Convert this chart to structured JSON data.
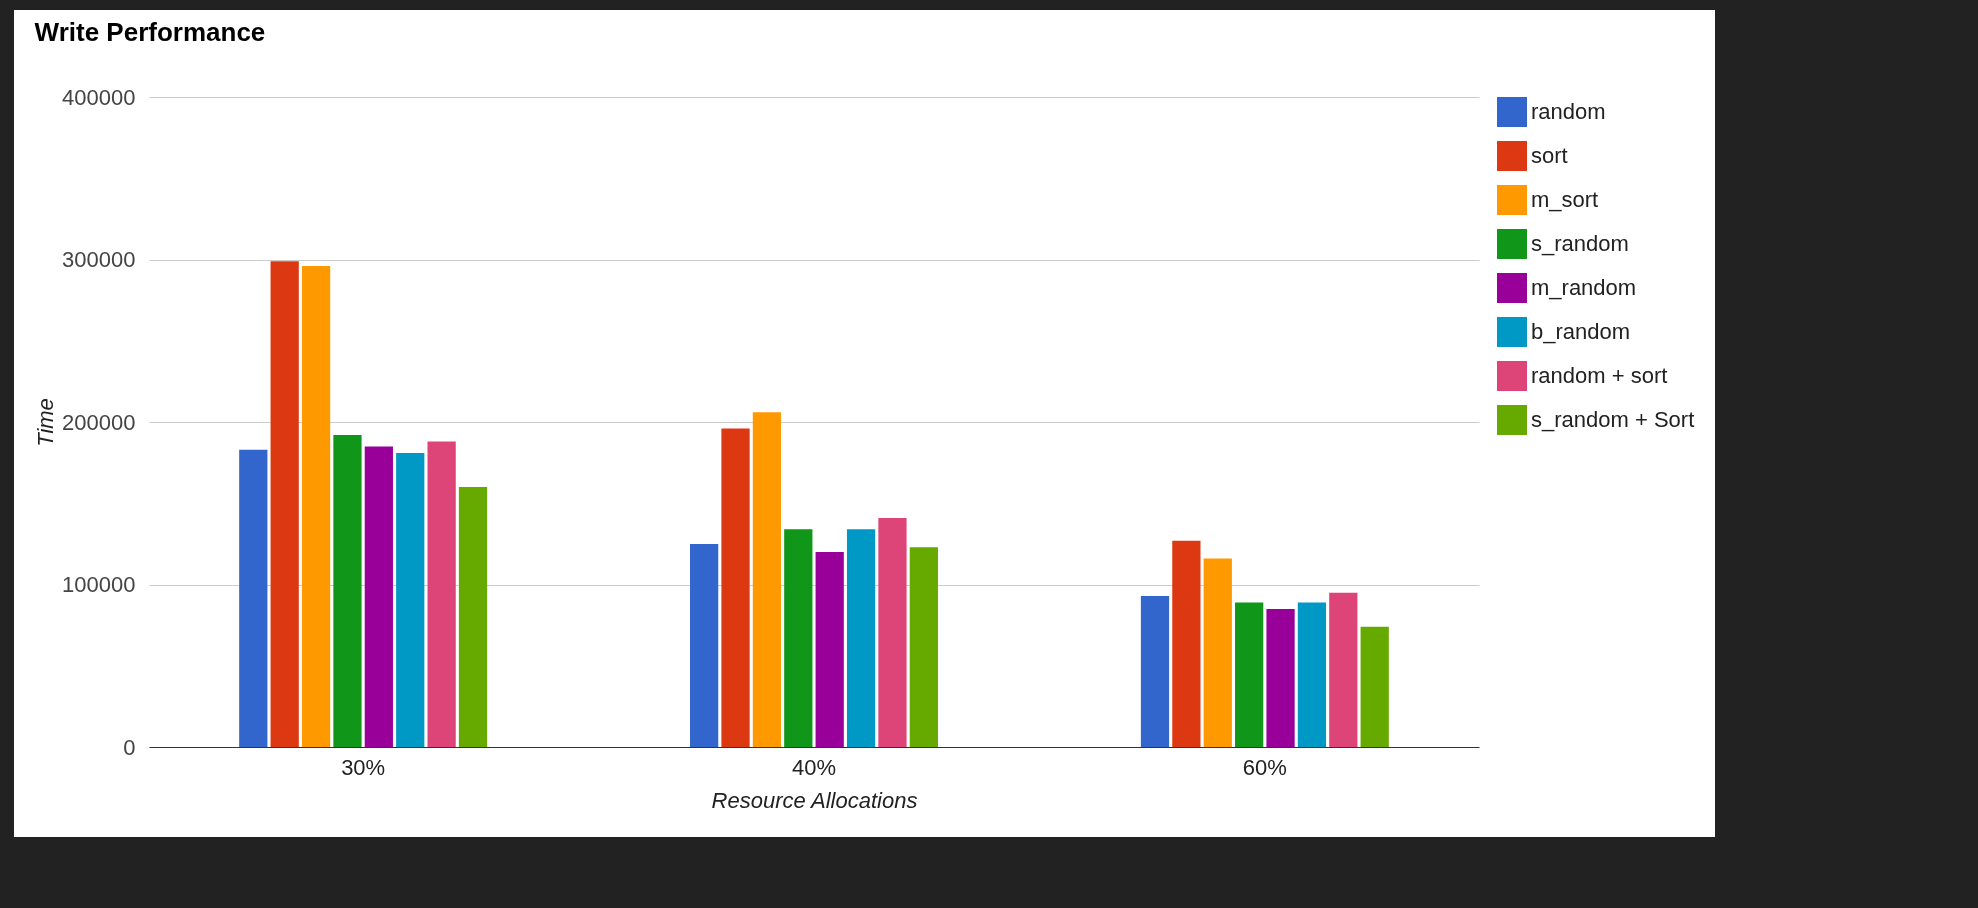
{
  "chart_data": {
    "type": "bar",
    "title": "Write Performance",
    "xlabel": "Resource Allocations",
    "ylabel": "Time",
    "categories": [
      "30%",
      "40%",
      "60%"
    ],
    "series": [
      {
        "name": "random",
        "color": "#3366cc",
        "values": [
          183000,
          125000,
          93000
        ]
      },
      {
        "name": "sort",
        "color": "#dc3912",
        "values": [
          299000,
          196000,
          127000
        ]
      },
      {
        "name": "m_sort",
        "color": "#ff9900",
        "values": [
          296000,
          206000,
          116000
        ]
      },
      {
        "name": "s_random",
        "color": "#109618",
        "values": [
          192000,
          134000,
          89000
        ]
      },
      {
        "name": "m_random",
        "color": "#990099",
        "values": [
          185000,
          120000,
          85000
        ]
      },
      {
        "name": "b_random",
        "color": "#0099c6",
        "values": [
          181000,
          134000,
          89000
        ]
      },
      {
        "name": "random + sort",
        "color": "#dd4477",
        "values": [
          188000,
          141000,
          95000
        ]
      },
      {
        "name": "s_random + Sort",
        "color": "#66aa00",
        "values": [
          160000,
          123000,
          74000
        ]
      }
    ],
    "ylim": [
      0,
      400000
    ],
    "yticks": [
      0,
      100000,
      200000,
      300000,
      400000
    ],
    "grid": "y",
    "legend": "right"
  }
}
